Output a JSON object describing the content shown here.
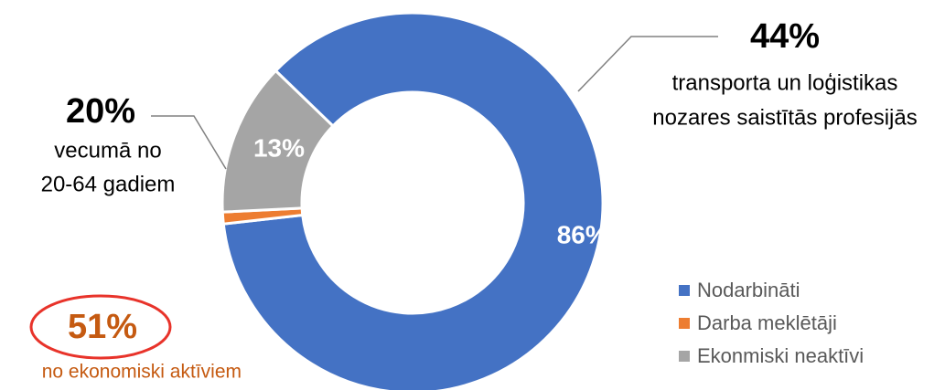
{
  "chart_data": {
    "type": "donut",
    "categories": [
      "Nodarbināti",
      "Darba meklētāji",
      "Ekonmiski neaktīvi"
    ],
    "values": [
      86,
      1,
      13
    ],
    "value_labels": [
      "86%",
      null,
      "13%"
    ],
    "colors": [
      "#4472c4",
      "#ed7d31",
      "#a5a5a5"
    ],
    "legend": "bottom-right",
    "annotations": [
      "44%",
      "transporta un loģistikas",
      "nozares saistītās profesijās",
      "20%",
      "vecumā no",
      "20-64 gadiem",
      "51%",
      "no ekonomiski aktīviem"
    ]
  }
}
